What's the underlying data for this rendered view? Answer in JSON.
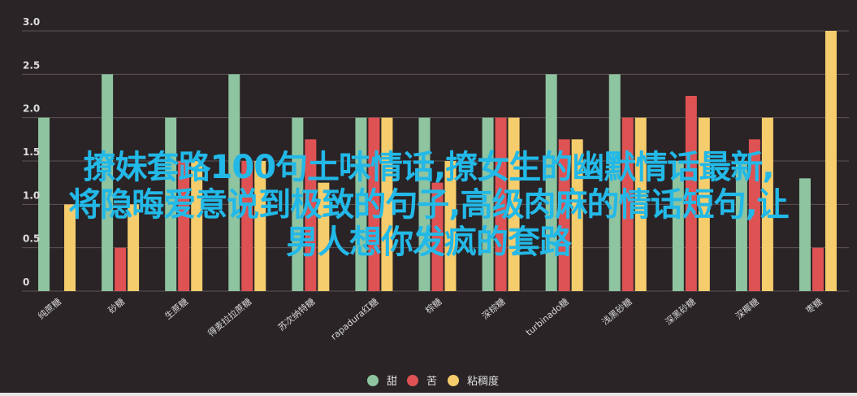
{
  "chart_data": {
    "type": "bar",
    "categories": [
      "纯蔗糖",
      "砂糖",
      "生蔗糖",
      "得麦拉拉蔗糖",
      "苏次纳特糖",
      "rapadura红糖",
      "棕糖",
      "深棕糖",
      "turbinado糖",
      "浅黑砂糖",
      "深黑砂糖",
      "深椰糖",
      "枣糖"
    ],
    "series": [
      {
        "name": "甜",
        "color": "#8ec4a0",
        "values": [
          2,
          2.5,
          2,
          2.5,
          2,
          2,
          2,
          2,
          2.5,
          2.5,
          1.5,
          1.5,
          1.3
        ]
      },
      {
        "name": "苦",
        "color": "#de5254",
        "values": [
          0,
          0.5,
          1.5,
          1.5,
          1.75,
          2,
          1.25,
          2,
          1.75,
          2,
          2.25,
          1.75,
          0.5
        ]
      },
      {
        "name": "粘稠度",
        "color": "#f6cd6c",
        "values": [
          1,
          1,
          1.5,
          1.5,
          1.25,
          2,
          1.5,
          2,
          1.75,
          2,
          2,
          2,
          3
        ]
      }
    ],
    "yticks": [
      "0",
      "0.5",
      "1.0",
      "1.5",
      "2.0",
      "2.5",
      "3.0"
    ],
    "ylim": [
      0,
      3
    ],
    "grid": true,
    "legend_position": "bottom-center"
  },
  "overlay": {
    "line1": "撩妹套路100句土味情话,撩女生的幽默情话最新,",
    "line2": "将隐晦爱意说到极致的句子,高级肉麻的情话短句,让",
    "line3": "男人想你发疯的套路"
  }
}
